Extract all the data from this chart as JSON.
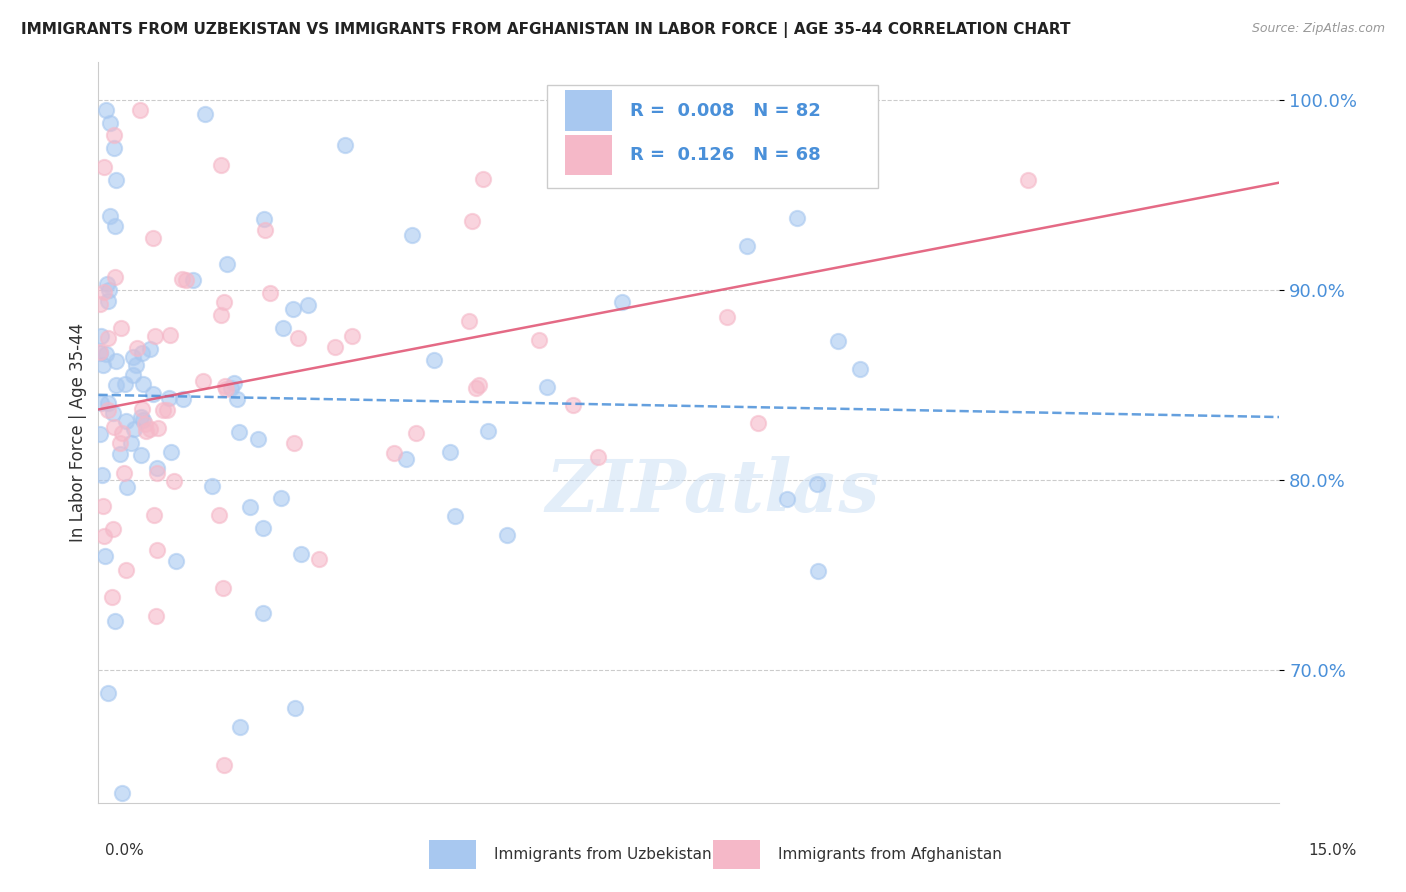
{
  "title": "IMMIGRANTS FROM UZBEKISTAN VS IMMIGRANTS FROM AFGHANISTAN IN LABOR FORCE | AGE 35-44 CORRELATION CHART",
  "source": "Source: ZipAtlas.com",
  "ylabel": "In Labor Force | Age 35-44",
  "xmin": 0.0,
  "xmax": 15.0,
  "ymin": 63.0,
  "ymax": 102.0,
  "ytick_vals": [
    70.0,
    80.0,
    90.0,
    100.0
  ],
  "ytick_labels": [
    "70.0%",
    "80.0%",
    "90.0%",
    "100.0%"
  ],
  "color_uzbekistan": "#a8c8f0",
  "color_afghanistan": "#f5b8c8",
  "line_color_uzbekistan": "#4a90d9",
  "line_color_afghanistan": "#e05070",
  "R_uzbekistan": 0.008,
  "N_uzbekistan": 82,
  "R_afghanistan": 0.126,
  "N_afghanistan": 68,
  "watermark": "ZIPatlas",
  "background_color": "#ffffff",
  "label_color": "#4a7abf",
  "tick_label_color": "#4a90d9"
}
